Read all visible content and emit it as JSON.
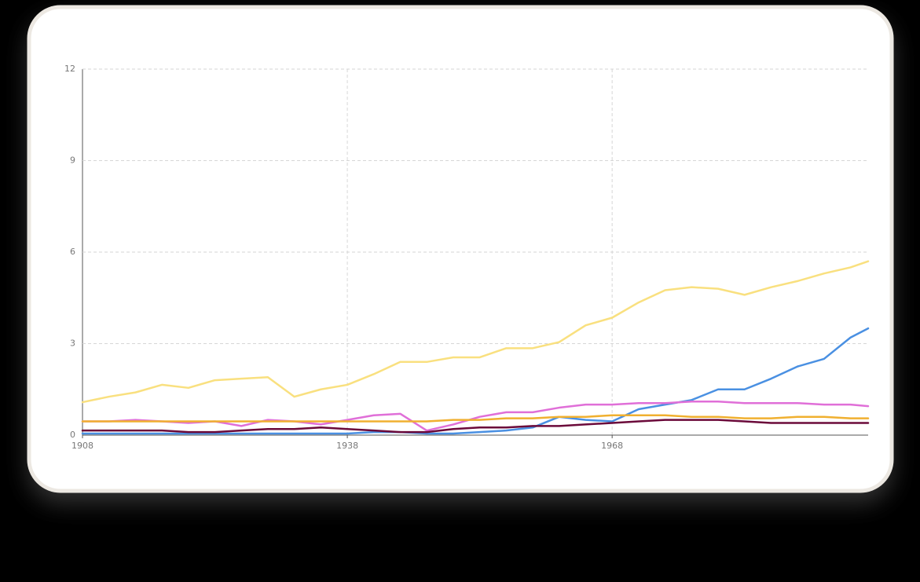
{
  "chart_data": {
    "type": "line",
    "x": [
      1908,
      1911,
      1914,
      1917,
      1920,
      1923,
      1926,
      1929,
      1932,
      1935,
      1938,
      1941,
      1944,
      1947,
      1950,
      1953,
      1956,
      1959,
      1962,
      1965,
      1968,
      1971,
      1974,
      1977,
      1980,
      1983,
      1986,
      1989,
      1992,
      1995,
      1997
    ],
    "xlim": [
      1908,
      1997
    ],
    "xticks": [
      1908,
      1938,
      1968
    ],
    "ylim": [
      0,
      12
    ],
    "yticks": [
      0,
      3,
      6,
      9,
      12
    ],
    "grid": true,
    "series": [
      {
        "color": "#f9e07f",
        "values": [
          1.08,
          1.26,
          1.4,
          1.65,
          1.55,
          1.8,
          1.85,
          1.9,
          1.26,
          1.5,
          1.65,
          2.0,
          2.4,
          2.4,
          2.55,
          2.55,
          2.85,
          2.85,
          3.05,
          3.6,
          3.85,
          4.35,
          4.75,
          4.85,
          4.8,
          4.6,
          4.85,
          5.05,
          5.3,
          5.5,
          5.7
        ]
      },
      {
        "color": "#4a90e2",
        "values": [
          0.05,
          0.05,
          0.05,
          0.05,
          0.05,
          0.05,
          0.05,
          0.05,
          0.05,
          0.05,
          0.05,
          0.1,
          0.1,
          0.05,
          0.05,
          0.1,
          0.15,
          0.25,
          0.6,
          0.5,
          0.45,
          0.85,
          1.0,
          1.15,
          1.5,
          1.5,
          1.85,
          2.25,
          2.5,
          3.2,
          3.5
        ]
      },
      {
        "color": "#e06fd8",
        "values": [
          0.45,
          0.45,
          0.5,
          0.45,
          0.4,
          0.45,
          0.3,
          0.5,
          0.45,
          0.35,
          0.5,
          0.65,
          0.7,
          0.15,
          0.35,
          0.6,
          0.75,
          0.75,
          0.9,
          1.0,
          1.0,
          1.05,
          1.05,
          1.1,
          1.1,
          1.05,
          1.05,
          1.05,
          1.0,
          1.0,
          0.95
        ]
      },
      {
        "color": "#f0b030",
        "values": [
          0.45,
          0.45,
          0.45,
          0.45,
          0.45,
          0.45,
          0.45,
          0.45,
          0.45,
          0.45,
          0.45,
          0.45,
          0.45,
          0.45,
          0.5,
          0.5,
          0.55,
          0.55,
          0.6,
          0.6,
          0.65,
          0.65,
          0.65,
          0.6,
          0.6,
          0.55,
          0.55,
          0.6,
          0.6,
          0.55,
          0.55
        ]
      },
      {
        "color": "#6b0a3a",
        "values": [
          0.15,
          0.15,
          0.15,
          0.15,
          0.1,
          0.1,
          0.15,
          0.2,
          0.2,
          0.25,
          0.2,
          0.15,
          0.1,
          0.1,
          0.2,
          0.25,
          0.25,
          0.3,
          0.3,
          0.35,
          0.4,
          0.45,
          0.5,
          0.5,
          0.5,
          0.45,
          0.4,
          0.4,
          0.4,
          0.4,
          0.4
        ]
      }
    ]
  }
}
